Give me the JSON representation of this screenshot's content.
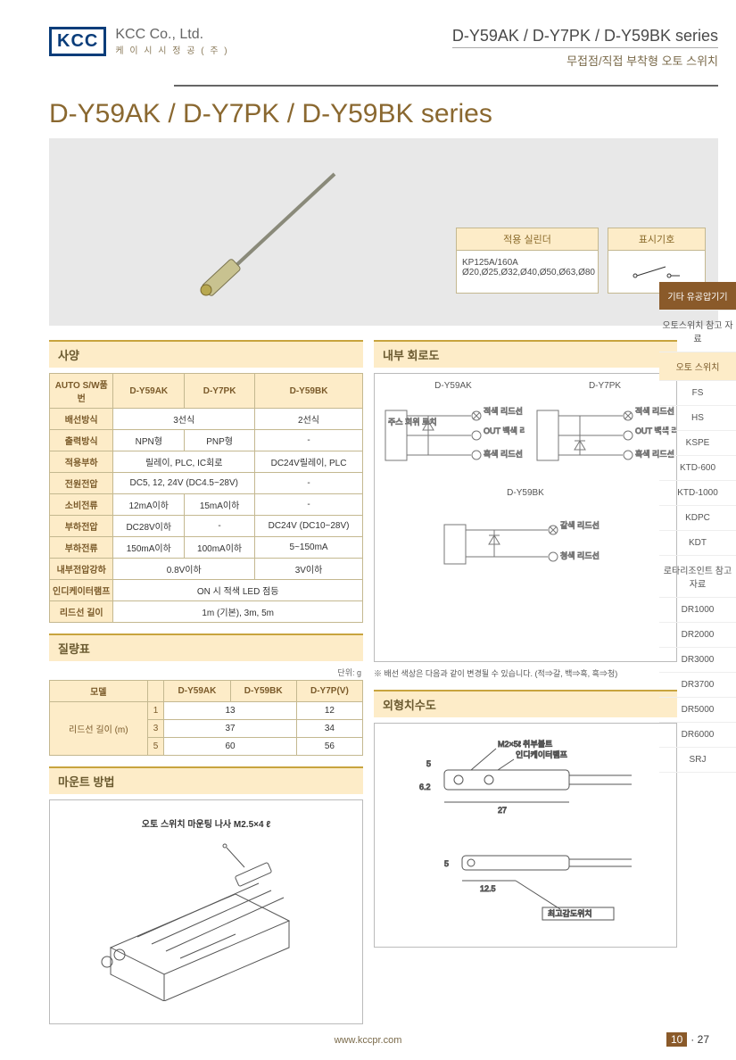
{
  "header": {
    "logo": "KCC",
    "company_name": "KCC Co., Ltd.",
    "company_sub": "케 이 시 시 정 공 ( 주 )",
    "series_line": "D-Y59AK / D-Y7PK / D-Y59BK series",
    "subtitle": "무접점/직접 부착형 오토 스위치"
  },
  "main_title": "D-Y59AK / D-Y7PK / D-Y59BK series",
  "hero_tables": {
    "t1_head": "적용 실린더",
    "t1_body": "KP125A/160A Ø20,Ø25,Ø32,Ø40,Ø50,Ø63,Ø80",
    "t2_head": "표시기호"
  },
  "sections": {
    "spec": "사양",
    "circuit": "내부 회로도",
    "mass": "질량표",
    "mount": "마운트 방법",
    "dim": "외형치수도"
  },
  "spec": {
    "cols": [
      "AUTO S/W품번",
      "D-Y59AK",
      "D-Y7PK",
      "D-Y59BK"
    ],
    "rows": [
      {
        "h": "배선방식",
        "v": [
          "3선식",
          "3선식",
          "2선식"
        ],
        "span": [
          2,
          0,
          1
        ]
      },
      {
        "h": "출력방식",
        "v": [
          "NPN형",
          "PNP형",
          "-"
        ]
      },
      {
        "h": "적용부하",
        "v": [
          "릴레이, PLC, IC회로",
          "",
          "DC24V릴레이, PLC"
        ],
        "span": [
          2,
          0,
          1
        ]
      },
      {
        "h": "전원전압",
        "v": [
          "DC5, 12, 24V (DC4.5~28V)",
          "",
          "-"
        ],
        "span": [
          2,
          0,
          1
        ]
      },
      {
        "h": "소비전류",
        "v": [
          "12mA이하",
          "15mA이하",
          "-"
        ]
      },
      {
        "h": "부하전압",
        "v": [
          "DC28V이하",
          "-",
          "DC24V (DC10~28V)"
        ]
      },
      {
        "h": "부하전류",
        "v": [
          "150mA이하",
          "100mA이하",
          "5~150mA"
        ]
      },
      {
        "h": "내부전압강하",
        "v": [
          "0.8V이하",
          "",
          "3V이하"
        ],
        "span": [
          2,
          0,
          1
        ]
      },
      {
        "h": "인디케이터램프",
        "v": [
          "ON 시 적색 LED 점등"
        ],
        "span": [
          3
        ]
      },
      {
        "h": "리드선 길이",
        "v": [
          "1m (기본), 3m, 5m"
        ],
        "span": [
          3
        ]
      }
    ]
  },
  "mass": {
    "unit": "단위: g",
    "cols": [
      "모델",
      "",
      "D-Y59AK",
      "D-Y59BK",
      "D-Y7P(V)"
    ],
    "row_label": "리드선 길이 (m)",
    "rows": [
      {
        "len": "1",
        "v": [
          "13",
          "",
          "12"
        ],
        "span": [
          2,
          0,
          1
        ]
      },
      {
        "len": "3",
        "v": [
          "37",
          "",
          "34"
        ],
        "span": [
          2,
          0,
          1
        ]
      },
      {
        "len": "5",
        "v": [
          "60",
          "",
          "56"
        ],
        "span": [
          2,
          0,
          1
        ]
      }
    ]
  },
  "circuit": {
    "labels": [
      "D-Y59AK",
      "D-Y7PK",
      "D-Y59BK"
    ],
    "block": "주스 회위 로치",
    "lines3": {
      "red": "적색 리드선",
      "white": "OUT 백색 리드선",
      "black": "흑색 리드선"
    },
    "lines2": {
      "brown": "갈색 리드선",
      "blue": "청색 리드선"
    },
    "note": "※ 배선 색상은 다음과 같이 변경될 수 있습니다. (적⇒갈, 백⇒흑, 흑⇒청)"
  },
  "mount": {
    "screw_label": "오토 스위치 마운팅 나사 M2.5×4 ℓ"
  },
  "dim": {
    "bolt": "M2×5ℓ 취부볼트",
    "ind": "인디케이터램프",
    "d5": "5",
    "d62": "6.2",
    "d27": "27",
    "d125": "12.5",
    "sense": "최고감도위치"
  },
  "sidebar": [
    {
      "txt": "기타 유공압기기",
      "cls": "active1"
    },
    {
      "txt": "오토스위치 참고 자료",
      "cls": ""
    },
    {
      "txt": "오토 스위치",
      "cls": "active2"
    },
    {
      "txt": "FS",
      "cls": ""
    },
    {
      "txt": "HS",
      "cls": ""
    },
    {
      "txt": "KSPE",
      "cls": ""
    },
    {
      "txt": "KTD-600",
      "cls": ""
    },
    {
      "txt": "KTD-1000",
      "cls": ""
    },
    {
      "txt": "KDPC",
      "cls": ""
    },
    {
      "txt": "KDT",
      "cls": ""
    },
    {
      "txt": "로타리조인트 참고 자료",
      "cls": ""
    },
    {
      "txt": "DR1000",
      "cls": ""
    },
    {
      "txt": "DR2000",
      "cls": ""
    },
    {
      "txt": "DR3000",
      "cls": ""
    },
    {
      "txt": "DR3700",
      "cls": ""
    },
    {
      "txt": "DR5000",
      "cls": ""
    },
    {
      "txt": "DR6000",
      "cls": ""
    },
    {
      "txt": "SRJ",
      "cls": ""
    }
  ],
  "footer": {
    "url": "www.kccpr.com",
    "chap": "10",
    "page": "27"
  },
  "colors": {
    "accent": "#8a6830",
    "thead": "#fdecc8",
    "border": "#c4b890"
  }
}
